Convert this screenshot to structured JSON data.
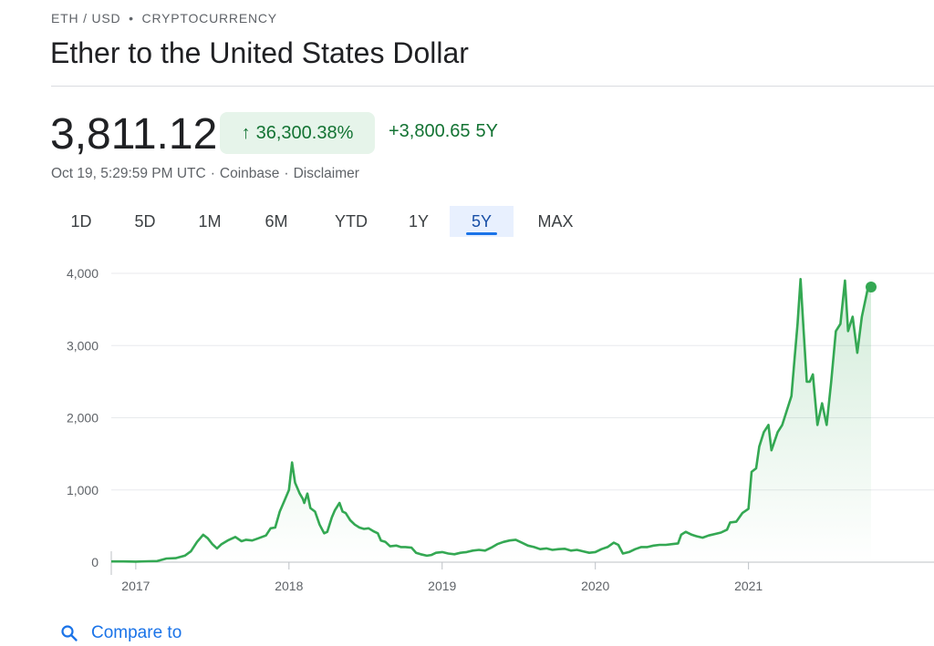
{
  "header": {
    "breadcrumb": {
      "pair": "ETH / USD",
      "separator": "•",
      "category": "CRYPTOCURRENCY"
    },
    "title": "Ether to the United States Dollar"
  },
  "quote": {
    "price": "3,811.12",
    "change_arrow": "↑",
    "change_percent": "36,300.38%",
    "change_abs": "+3,800.65",
    "change_period": "5Y",
    "timestamp": "Oct 19, 5:29:59 PM UTC",
    "sep1": "·",
    "source": "Coinbase",
    "sep2": "·",
    "disclaimer": "Disclaimer",
    "colors": {
      "up": "#137333",
      "up_bg": "#e6f4ea"
    }
  },
  "range_tabs": {
    "items": [
      "1D",
      "5D",
      "1M",
      "6M",
      "YTD",
      "1Y",
      "5Y",
      "MAX"
    ],
    "active": "5Y"
  },
  "compare": {
    "label": "Compare to",
    "icon": "search-icon"
  },
  "chart_data": {
    "type": "area",
    "title": "",
    "xlabel": "",
    "ylabel": "",
    "x_ticks": [
      "2017",
      "2018",
      "2019",
      "2020",
      "2021"
    ],
    "y_ticks": [
      "0",
      "1,000",
      "2,000",
      "3,000",
      "4,000"
    ],
    "ylim": [
      0,
      4000
    ],
    "xlim": [
      2016.84,
      2021.8
    ],
    "grid": "horizontal",
    "line_color": "#34a853",
    "series": [
      {
        "points": [
          [
            2016.84,
            10
          ],
          [
            2016.92,
            10
          ],
          [
            2017.0,
            8
          ],
          [
            2017.08,
            12
          ],
          [
            2017.14,
            15
          ],
          [
            2017.2,
            50
          ],
          [
            2017.26,
            55
          ],
          [
            2017.32,
            90
          ],
          [
            2017.36,
            150
          ],
          [
            2017.4,
            280
          ],
          [
            2017.44,
            380
          ],
          [
            2017.47,
            330
          ],
          [
            2017.5,
            250
          ],
          [
            2017.53,
            190
          ],
          [
            2017.56,
            250
          ],
          [
            2017.6,
            300
          ],
          [
            2017.65,
            350
          ],
          [
            2017.69,
            290
          ],
          [
            2017.72,
            310
          ],
          [
            2017.76,
            300
          ],
          [
            2017.8,
            330
          ],
          [
            2017.85,
            370
          ],
          [
            2017.88,
            470
          ],
          [
            2017.91,
            480
          ],
          [
            2017.94,
            700
          ],
          [
            2017.97,
            850
          ],
          [
            2018.0,
            1000
          ],
          [
            2018.02,
            1380
          ],
          [
            2018.04,
            1100
          ],
          [
            2018.07,
            950
          ],
          [
            2018.09,
            880
          ],
          [
            2018.1,
            820
          ],
          [
            2018.12,
            950
          ],
          [
            2018.14,
            750
          ],
          [
            2018.17,
            700
          ],
          [
            2018.2,
            520
          ],
          [
            2018.23,
            400
          ],
          [
            2018.25,
            420
          ],
          [
            2018.28,
            620
          ],
          [
            2018.3,
            720
          ],
          [
            2018.33,
            820
          ],
          [
            2018.35,
            700
          ],
          [
            2018.37,
            680
          ],
          [
            2018.4,
            580
          ],
          [
            2018.43,
            520
          ],
          [
            2018.46,
            480
          ],
          [
            2018.49,
            460
          ],
          [
            2018.52,
            470
          ],
          [
            2018.55,
            430
          ],
          [
            2018.58,
            400
          ],
          [
            2018.6,
            300
          ],
          [
            2018.63,
            280
          ],
          [
            2018.66,
            220
          ],
          [
            2018.7,
            230
          ],
          [
            2018.73,
            210
          ],
          [
            2018.76,
            210
          ],
          [
            2018.8,
            200
          ],
          [
            2018.83,
            130
          ],
          [
            2018.86,
            110
          ],
          [
            2018.9,
            90
          ],
          [
            2018.93,
            100
          ],
          [
            2018.96,
            130
          ],
          [
            2019.0,
            140
          ],
          [
            2019.04,
            120
          ],
          [
            2019.08,
            110
          ],
          [
            2019.12,
            130
          ],
          [
            2019.16,
            140
          ],
          [
            2019.2,
            160
          ],
          [
            2019.24,
            170
          ],
          [
            2019.28,
            160
          ],
          [
            2019.32,
            200
          ],
          [
            2019.36,
            250
          ],
          [
            2019.4,
            280
          ],
          [
            2019.44,
            300
          ],
          [
            2019.48,
            310
          ],
          [
            2019.52,
            270
          ],
          [
            2019.56,
            230
          ],
          [
            2019.6,
            210
          ],
          [
            2019.64,
            180
          ],
          [
            2019.68,
            190
          ],
          [
            2019.72,
            170
          ],
          [
            2019.76,
            180
          ],
          [
            2019.8,
            185
          ],
          [
            2019.84,
            160
          ],
          [
            2019.88,
            170
          ],
          [
            2019.92,
            150
          ],
          [
            2019.96,
            130
          ],
          [
            2020.0,
            140
          ],
          [
            2020.04,
            180
          ],
          [
            2020.08,
            210
          ],
          [
            2020.12,
            270
          ],
          [
            2020.15,
            240
          ],
          [
            2020.18,
            120
          ],
          [
            2020.22,
            140
          ],
          [
            2020.26,
            180
          ],
          [
            2020.3,
            210
          ],
          [
            2020.34,
            210
          ],
          [
            2020.38,
            230
          ],
          [
            2020.42,
            240
          ],
          [
            2020.46,
            240
          ],
          [
            2020.5,
            250
          ],
          [
            2020.54,
            260
          ],
          [
            2020.56,
            380
          ],
          [
            2020.59,
            420
          ],
          [
            2020.63,
            380
          ],
          [
            2020.66,
            360
          ],
          [
            2020.7,
            340
          ],
          [
            2020.74,
            370
          ],
          [
            2020.78,
            390
          ],
          [
            2020.82,
            410
          ],
          [
            2020.86,
            450
          ],
          [
            2020.88,
            550
          ],
          [
            2020.92,
            560
          ],
          [
            2020.96,
            680
          ],
          [
            2021.0,
            740
          ],
          [
            2021.02,
            1250
          ],
          [
            2021.05,
            1300
          ],
          [
            2021.07,
            1600
          ],
          [
            2021.1,
            1800
          ],
          [
            2021.13,
            1900
          ],
          [
            2021.15,
            1550
          ],
          [
            2021.19,
            1800
          ],
          [
            2021.22,
            1900
          ],
          [
            2021.25,
            2100
          ],
          [
            2021.28,
            2300
          ],
          [
            2021.3,
            2800
          ],
          [
            2021.32,
            3300
          ],
          [
            2021.34,
            3920
          ],
          [
            2021.36,
            3200
          ],
          [
            2021.38,
            2500
          ],
          [
            2021.4,
            2500
          ],
          [
            2021.42,
            2600
          ],
          [
            2021.45,
            1900
          ],
          [
            2021.48,
            2200
          ],
          [
            2021.51,
            1900
          ],
          [
            2021.54,
            2500
          ],
          [
            2021.57,
            3200
          ],
          [
            2021.6,
            3300
          ],
          [
            2021.63,
            3900
          ],
          [
            2021.65,
            3200
          ],
          [
            2021.68,
            3400
          ],
          [
            2021.71,
            2900
          ],
          [
            2021.74,
            3400
          ],
          [
            2021.78,
            3800
          ],
          [
            2021.8,
            3811
          ]
        ]
      }
    ]
  }
}
